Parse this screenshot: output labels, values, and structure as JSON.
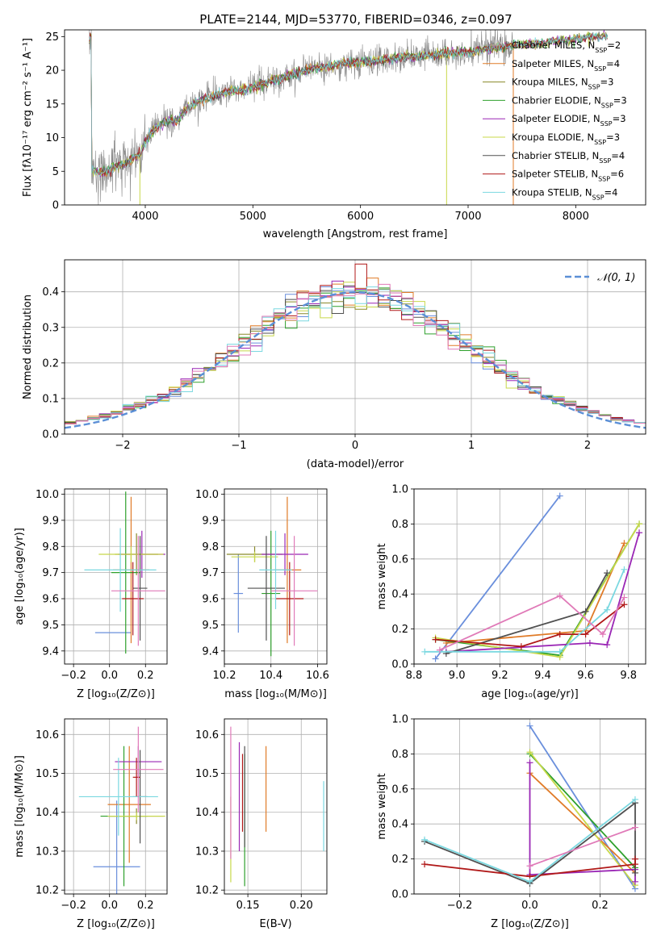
{
  "figure": {
    "title": "PLATE=2144, MJD=53770, FIBERID=0346, z=0.097"
  },
  "colors": [
    "#6a8fdc",
    "#e07b28",
    "#8a8a2a",
    "#2ea02c",
    "#9a27b5",
    "#c8d84a",
    "#505050",
    "#b01818",
    "#7ad8e0",
    "#e07ab8"
  ],
  "chart_data": [
    {
      "id": "spectrum",
      "type": "line",
      "xlabel": "wavelength [Angstrom, rest frame]",
      "ylabel": "Flux [fλ10⁻¹⁷ erg cm⁻² s⁻¹ A⁻¹]",
      "xlim": [
        3250,
        8650
      ],
      "ylim": [
        0,
        26
      ],
      "xticks": [
        4000,
        5000,
        6000,
        7000,
        8000
      ],
      "yticks": [
        0,
        5,
        10,
        15,
        20,
        25
      ],
      "grid": false,
      "legend_position": "right",
      "legend": [
        {
          "name": "Chabrier MILES, N",
          "sub": "SSP",
          "suffix": "=2",
          "color": "#aaaaaa"
        },
        {
          "name": "Salpeter MILES, N",
          "sub": "SSP",
          "suffix": "=4",
          "color": "#e07b28"
        },
        {
          "name": "Kroupa MILES, N",
          "sub": "SSP",
          "suffix": "=3",
          "color": "#8a8a2a"
        },
        {
          "name": "Chabrier ELODIE, N",
          "sub": "SSP",
          "suffix": "=3",
          "color": "#2ea02c"
        },
        {
          "name": "Salpeter ELODIE, N",
          "sub": "SSP",
          "suffix": "=3",
          "color": "#9a27b5"
        },
        {
          "name": "Kroupa ELODIE, N",
          "sub": "SSP",
          "suffix": "=3",
          "color": "#c8d84a"
        },
        {
          "name": "Chabrier STELIB, N",
          "sub": "SSP",
          "suffix": "=4",
          "color": "#505050"
        },
        {
          "name": "Salpeter STELIB, N",
          "sub": "SSP",
          "suffix": "=6",
          "color": "#b01818"
        },
        {
          "name": "Kroupa STELIB, N",
          "sub": "SSP",
          "suffix": "=4",
          "color": "#7ad8e0"
        }
      ],
      "continuum": [
        [
          3500,
          5
        ],
        [
          3600,
          4.8
        ],
        [
          3700,
          5.5
        ],
        [
          3800,
          6
        ],
        [
          3900,
          7
        ],
        [
          3950,
          7.5
        ],
        [
          4000,
          9.5
        ],
        [
          4100,
          11.5
        ],
        [
          4200,
          12.5
        ],
        [
          4300,
          12.5
        ],
        [
          4400,
          14.5
        ],
        [
          4500,
          15.5
        ],
        [
          4600,
          16
        ],
        [
          4700,
          16.5
        ],
        [
          4800,
          17
        ],
        [
          4900,
          17
        ],
        [
          5000,
          17.5
        ],
        [
          5100,
          18
        ],
        [
          5200,
          18.5
        ],
        [
          5300,
          19
        ],
        [
          5400,
          19.5
        ],
        [
          5500,
          20
        ],
        [
          5600,
          20.3
        ],
        [
          5700,
          20.6
        ],
        [
          5800,
          21
        ],
        [
          5900,
          21
        ],
        [
          6000,
          21.2
        ],
        [
          6100,
          21.4
        ],
        [
          6200,
          21.5
        ],
        [
          6300,
          21.8
        ],
        [
          6400,
          22
        ],
        [
          6500,
          22
        ],
        [
          6600,
          22.2
        ],
        [
          6700,
          22.3
        ],
        [
          6800,
          22.5
        ],
        [
          6900,
          22.6
        ],
        [
          7000,
          22.7
        ],
        [
          7100,
          23
        ],
        [
          7200,
          23.2
        ],
        [
          7300,
          23.4
        ],
        [
          7400,
          23.6
        ],
        [
          7500,
          23.8
        ],
        [
          7600,
          24
        ],
        [
          7700,
          24
        ],
        [
          7800,
          24.3
        ],
        [
          7900,
          24.5
        ],
        [
          8000,
          24.6
        ],
        [
          8100,
          24.8
        ],
        [
          8200,
          25
        ],
        [
          8300,
          25
        ]
      ],
      "spike_lines": [
        {
          "x": 6800,
          "y_from": 22,
          "y_to": 0,
          "color": "#c8d84a"
        },
        {
          "x": 7420,
          "y_from": 23.5,
          "y_to": 0,
          "color": "#e07b28"
        },
        {
          "x": 3950,
          "y_from": 7.5,
          "y_to": 0,
          "color": "#c8d84a"
        }
      ]
    },
    {
      "id": "residuals",
      "type": "histogram",
      "xlabel": "(data-model)/error",
      "ylabel": "Normed distribution",
      "xlim": [
        -2.5,
        2.5
      ],
      "ylim": [
        0,
        0.49
      ],
      "xticks": [
        -2,
        -1,
        0,
        1,
        2
      ],
      "yticks": [
        0.0,
        0.1,
        0.2,
        0.3,
        0.4
      ],
      "grid": true,
      "legend_position": "top-right",
      "legend_label": "𝒩(0, 1)",
      "bin_width": 0.1
    },
    {
      "id": "age_vs_Z",
      "type": "errorbar",
      "xlabel": "Z [log₁₀(Z/Z⊙)]",
      "ylabel": "age  [log₁₀(age/yr)]",
      "xlim": [
        -0.25,
        0.32
      ],
      "ylim": [
        9.35,
        10.02
      ],
      "xticks": [
        -0.2,
        0.0,
        0.2
      ],
      "yticks": [
        9.4,
        9.5,
        9.6,
        9.7,
        9.8,
        9.9,
        10.0
      ],
      "grid": true,
      "points": [
        {
          "x": 0.02,
          "y": 9.47,
          "xerr": 0.1,
          "yerr": 0.0,
          "color": "#6a8fdc"
        },
        {
          "x": 0.12,
          "y": 9.71,
          "xerr": 0.1,
          "yerr": 0.28,
          "color": "#e07b28"
        },
        {
          "x": 0.15,
          "y": 9.77,
          "xerr": 0.12,
          "yerr": 0.08,
          "color": "#8a8a2a"
        },
        {
          "x": 0.09,
          "y": 9.7,
          "xerr": 0.08,
          "yerr": 0.31,
          "color": "#2ea02c"
        },
        {
          "x": 0.18,
          "y": 9.77,
          "xerr": 0.13,
          "yerr": 0.09,
          "color": "#9a27b5"
        },
        {
          "x": 0.12,
          "y": 9.77,
          "xerr": 0.18,
          "yerr": 0.03,
          "color": "#c8d84a"
        },
        {
          "x": 0.17,
          "y": 9.64,
          "xerr": 0.04,
          "yerr": 0.2,
          "color": "#505050"
        },
        {
          "x": 0.13,
          "y": 9.6,
          "xerr": 0.06,
          "yerr": 0.14,
          "color": "#b01818"
        },
        {
          "x": 0.06,
          "y": 9.71,
          "xerr": 0.2,
          "yerr": 0.16,
          "color": "#7ad8e0"
        },
        {
          "x": 0.16,
          "y": 9.63,
          "xerr": 0.15,
          "yerr": 0.21,
          "color": "#e07ab8"
        }
      ]
    },
    {
      "id": "age_vs_mass",
      "type": "errorbar",
      "xlabel": "mass [log₁₀(M/M⊙)]",
      "ylabel": "",
      "xlim": [
        10.2,
        10.64
      ],
      "ylim": [
        9.35,
        10.02
      ],
      "xticks": [
        10.2,
        10.4,
        10.6
      ],
      "yticks": [
        9.4,
        9.5,
        9.6,
        9.7,
        9.8,
        9.9,
        10.0
      ],
      "grid": true,
      "points": [
        {
          "x": 10.26,
          "y": 9.62,
          "xerr": 0.02,
          "yerr": 0.15,
          "color": "#6a8fdc"
        },
        {
          "x": 10.47,
          "y": 9.71,
          "xerr": 0.06,
          "yerr": 0.28,
          "color": "#e07b28"
        },
        {
          "x": 10.33,
          "y": 9.77,
          "xerr": 0.12,
          "yerr": 0.03,
          "color": "#8a8a2a"
        },
        {
          "x": 10.4,
          "y": 9.62,
          "xerr": 0.04,
          "yerr": 0.24,
          "color": "#2ea02c"
        },
        {
          "x": 10.46,
          "y": 9.77,
          "xerr": 0.1,
          "yerr": 0.08,
          "color": "#9a27b5"
        },
        {
          "x": 10.33,
          "y": 9.76,
          "xerr": 0.1,
          "yerr": 0.02,
          "color": "#c8d84a"
        },
        {
          "x": 10.38,
          "y": 9.64,
          "xerr": 0.08,
          "yerr": 0.2,
          "color": "#505050"
        },
        {
          "x": 10.48,
          "y": 9.6,
          "xerr": 0.06,
          "yerr": 0.14,
          "color": "#b01818"
        },
        {
          "x": 10.42,
          "y": 9.71,
          "xerr": 0.07,
          "yerr": 0.15,
          "color": "#7ad8e0"
        },
        {
          "x": 10.5,
          "y": 9.63,
          "xerr": 0.1,
          "yerr": 0.21,
          "color": "#e07ab8"
        }
      ]
    },
    {
      "id": "weight_vs_age",
      "type": "line",
      "xlabel": "age  [log₁₀(age/yr)]",
      "ylabel": "mass weight",
      "xlim": [
        8.8,
        9.88
      ],
      "ylim": [
        0,
        1
      ],
      "xticks": [
        8.8,
        9.0,
        9.2,
        9.4,
        9.6,
        9.8
      ],
      "yticks": [
        0.0,
        0.2,
        0.4,
        0.6,
        0.8,
        1.0
      ],
      "grid": true,
      "series": [
        {
          "color": "#6a8fdc",
          "x": [
            8.9,
            9.48
          ],
          "y": [
            0.03,
            0.96
          ]
        },
        {
          "color": "#e07b28",
          "x": [
            8.95,
            9.6,
            9.78
          ],
          "y": [
            0.12,
            0.19,
            0.69
          ]
        },
        {
          "color": "#2ea02c",
          "x": [
            8.9,
            9.48,
            9.85
          ],
          "y": [
            0.14,
            0.05,
            0.8
          ]
        },
        {
          "color": "#c8d84a",
          "x": [
            8.9,
            9.48,
            9.85
          ],
          "y": [
            0.15,
            0.04,
            0.8
          ]
        },
        {
          "color": "#9a27b5",
          "x": [
            8.95,
            9.62,
            9.7,
            9.85
          ],
          "y": [
            0.07,
            0.12,
            0.11,
            0.75
          ]
        },
        {
          "color": "#505050",
          "x": [
            8.95,
            9.6,
            9.7
          ],
          "y": [
            0.06,
            0.3,
            0.52
          ]
        },
        {
          "color": "#b01818",
          "x": [
            8.9,
            9.3,
            9.48,
            9.6,
            9.78
          ],
          "y": [
            0.14,
            0.1,
            0.17,
            0.17,
            0.34
          ]
        },
        {
          "color": "#7ad8e0",
          "x": [
            8.85,
            9.48,
            9.7,
            9.78
          ],
          "y": [
            0.07,
            0.07,
            0.31,
            0.54
          ]
        },
        {
          "color": "#e07ab8",
          "x": [
            8.92,
            9.48,
            9.68,
            9.78
          ],
          "y": [
            0.08,
            0.39,
            0.17,
            0.38
          ]
        }
      ]
    },
    {
      "id": "mass_vs_Z",
      "type": "errorbar",
      "xlabel": "Z [log₁₀(Z/Z⊙)]",
      "ylabel": "mass [log₁₀(M/M⊙)]",
      "xlim": [
        -0.25,
        0.32
      ],
      "ylim": [
        10.19,
        10.64
      ],
      "xticks": [
        -0.2,
        0.0,
        0.2
      ],
      "yticks": [
        10.2,
        10.3,
        10.4,
        10.5,
        10.6
      ],
      "grid": true,
      "points": [
        {
          "x": 0.04,
          "y": 10.26,
          "xerr": 0.13,
          "yerr": 0.17,
          "color": "#6a8fdc"
        },
        {
          "x": 0.11,
          "y": 10.42,
          "xerr": 0.12,
          "yerr": 0.15,
          "color": "#e07b28"
        },
        {
          "x": 0.15,
          "y": 10.39,
          "xerr": 0.15,
          "yerr": 0.02,
          "color": "#8a8a2a"
        },
        {
          "x": 0.08,
          "y": 10.39,
          "xerr": 0.13,
          "yerr": 0.18,
          "color": "#2ea02c"
        },
        {
          "x": 0.16,
          "y": 10.53,
          "xerr": 0.13,
          "yerr": 0.04,
          "color": "#9a27b5"
        },
        {
          "x": 0.15,
          "y": 10.39,
          "xerr": 0.16,
          "yerr": 0.01,
          "color": "#c8d84a"
        },
        {
          "x": 0.17,
          "y": 10.44,
          "xerr": 0.04,
          "yerr": 0.12,
          "color": "#505050"
        },
        {
          "x": 0.15,
          "y": 10.49,
          "xerr": 0.02,
          "yerr": 0.05,
          "color": "#b01818"
        },
        {
          "x": 0.05,
          "y": 10.44,
          "xerr": 0.22,
          "yerr": 0.1,
          "color": "#7ad8e0"
        },
        {
          "x": 0.16,
          "y": 10.51,
          "xerr": 0.14,
          "yerr": 0.11,
          "color": "#e07ab8"
        }
      ]
    },
    {
      "id": "mass_vs_ebv",
      "type": "errorbar",
      "xlabel": "E(B-V)",
      "ylabel": "",
      "xlim": [
        0.128,
        0.224
      ],
      "ylim": [
        10.19,
        10.64
      ],
      "xticks": [
        0.15,
        0.2
      ],
      "yticks": [
        10.2,
        10.3,
        10.4,
        10.5,
        10.6
      ],
      "grid": true,
      "points": [
        {
          "x": 0.167,
          "y": 10.46,
          "xerr": 0,
          "yerr": 0.11,
          "color": "#e07b28"
        },
        {
          "x": 0.134,
          "y": 10.33,
          "xerr": 0,
          "yerr": 0.11,
          "color": "#c8d84a"
        },
        {
          "x": 0.147,
          "y": 10.38,
          "xerr": 0,
          "yerr": 0.17,
          "color": "#2ea02c"
        },
        {
          "x": 0.142,
          "y": 10.44,
          "xerr": 0,
          "yerr": 0.14,
          "color": "#9a27b5"
        },
        {
          "x": 0.147,
          "y": 10.44,
          "xerr": 0,
          "yerr": 0.13,
          "color": "#505050"
        },
        {
          "x": 0.145,
          "y": 10.45,
          "xerr": 0,
          "yerr": 0.1,
          "color": "#b01818"
        },
        {
          "x": 0.221,
          "y": 10.39,
          "xerr": 0,
          "yerr": 0.09,
          "color": "#7ad8e0"
        },
        {
          "x": 0.134,
          "y": 10.45,
          "xerr": 0,
          "yerr": 0.17,
          "color": "#e07ab8"
        }
      ]
    },
    {
      "id": "weight_vs_Z",
      "type": "line",
      "xlabel": "Z [log₁₀(Z/Z⊙)]",
      "ylabel": "mass weight",
      "xlim": [
        -0.33,
        0.33
      ],
      "ylim": [
        0,
        1
      ],
      "xticks": [
        -0.2,
        0.0,
        0.2
      ],
      "yticks": [
        0.0,
        0.2,
        0.4,
        0.6,
        0.8,
        1.0
      ],
      "grid": true,
      "series": [
        {
          "color": "#6a8fdc",
          "x": [
            0.0,
            0.3
          ],
          "y": [
            0.96,
            0.03
          ]
        },
        {
          "color": "#e07b28",
          "x": [
            0.0,
            0.3
          ],
          "y": [
            0.69,
            0.12
          ]
        },
        {
          "color": "#2ea02c",
          "x": [
            0.0,
            0.3
          ],
          "y": [
            0.8,
            0.15
          ]
        },
        {
          "color": "#c8d84a",
          "x": [
            0.0,
            0.3
          ],
          "y": [
            0.81,
            0.05
          ]
        },
        {
          "color": "#9a27b5",
          "x": [
            0.0,
            0.0,
            0.3,
            0.3
          ],
          "y": [
            0.75,
            0.11,
            0.14,
            0.07
          ]
        },
        {
          "color": "#505050",
          "x": [
            -0.3,
            0.0,
            0.3,
            0.3
          ],
          "y": [
            0.3,
            0.06,
            0.52,
            0.12
          ]
        },
        {
          "color": "#b01818",
          "x": [
            -0.3,
            0.0,
            0.3,
            0.3
          ],
          "y": [
            0.17,
            0.1,
            0.17,
            0.2
          ]
        },
        {
          "color": "#7ad8e0",
          "x": [
            -0.3,
            0.0,
            0.3
          ],
          "y": [
            0.31,
            0.07,
            0.54
          ]
        },
        {
          "color": "#e07ab8",
          "x": [
            0.0,
            0.3
          ],
          "y": [
            0.16,
            0.38
          ]
        }
      ]
    }
  ]
}
